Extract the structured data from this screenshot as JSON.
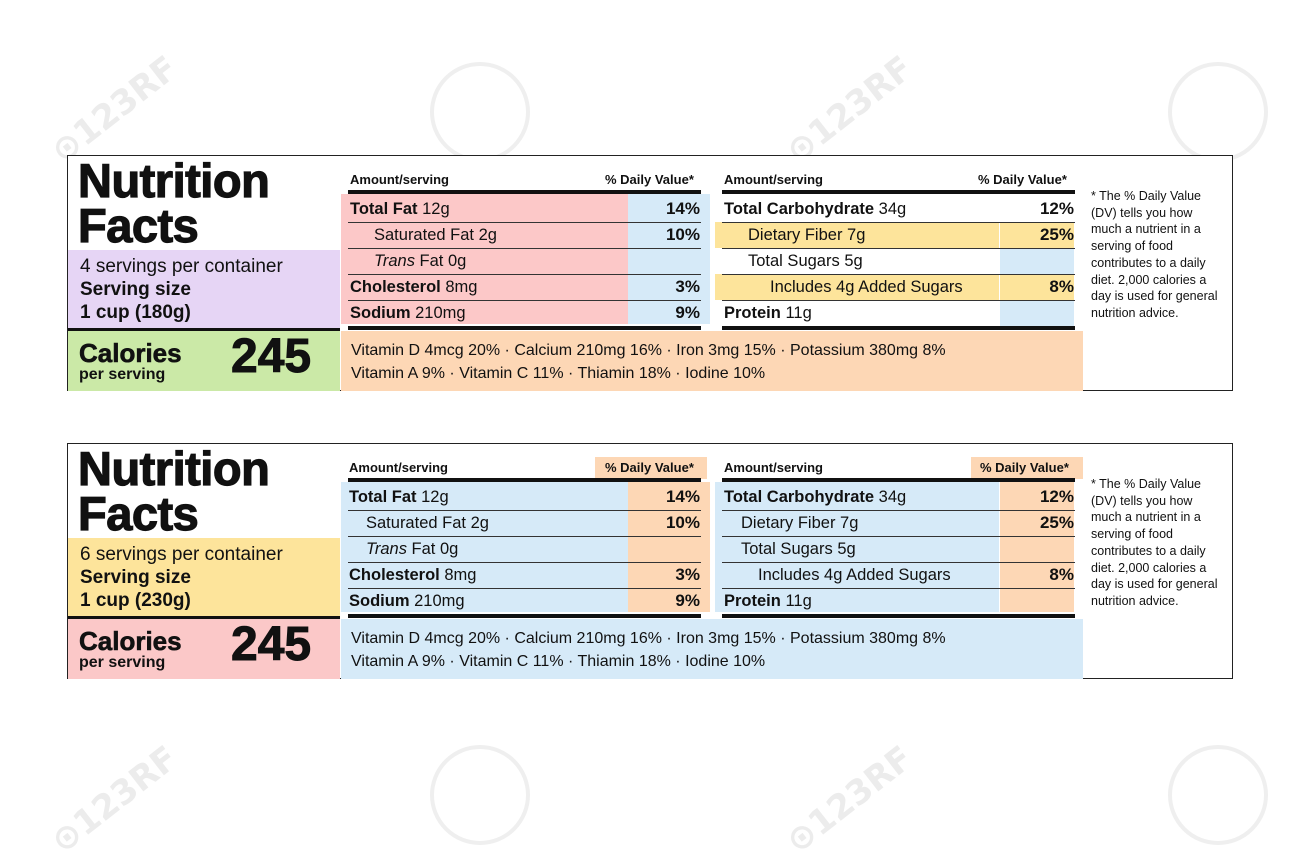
{
  "watermark": "123RF",
  "colors": {
    "pink": "#fcc8c8",
    "blue": "#d6eaf8",
    "lavender": "#e6d5f5",
    "green": "#cbe9a7",
    "orange": "#fdd7b5",
    "yellow": "#fde49b",
    "salmon": "#fbc8c8"
  },
  "labels": [
    {
      "title_line1": "Nutrition",
      "title_line2": "Facts",
      "servings": "4 servings per container",
      "serving_size_label": "Serving size",
      "serving_size_value": "1 cup (180g)",
      "calories_label": "Calories",
      "per_serving": "per serving",
      "calories_value": "245",
      "left_header": {
        "amount": "Amount/serving",
        "dv": "% Daily Value*"
      },
      "right_header": {
        "amount": "Amount/serving",
        "dv": "% Daily Value*"
      },
      "left_rows": [
        {
          "name": "Total Fat",
          "amount": "12g",
          "dv": "14%"
        },
        {
          "name": "Saturated Fat",
          "amount": "2g",
          "dv": "10%"
        },
        {
          "name": "Trans",
          "amount": "Fat 0g",
          "dv": ""
        },
        {
          "name": "Cholesterol",
          "amount": "8mg",
          "dv": "3%"
        },
        {
          "name": "Sodium",
          "amount": "210mg",
          "dv": "9%"
        }
      ],
      "right_rows": [
        {
          "name": "Total Carbohydrate",
          "amount": "34g",
          "dv": "12%"
        },
        {
          "name": "Dietary Fiber",
          "amount": "7g",
          "dv": "25%"
        },
        {
          "name": "Total Sugars",
          "amount": "5g",
          "dv": ""
        },
        {
          "name": "Includes 4g Added Sugars",
          "amount": "",
          "dv": "8%"
        },
        {
          "name": "Protein",
          "amount": "11g",
          "dv": ""
        }
      ],
      "vitamins_line1": "Vitamin D 4mcg 20% · Calcium 210mg 16% · Iron 3mg 15% · Potassium 380mg 8%",
      "vitamins_line2": "Vitamin A 9% · Vitamin C 11% · Thiamin 18% · Iodine 10%",
      "footnote": "* The % Daily Value (DV) tells you how much a nutrient in a serving of food contributes to a daily diet. 2,000 calories a day is used for general nutrition advice."
    },
    {
      "title_line1": "Nutrition",
      "title_line2": "Facts",
      "servings": "6 servings per container",
      "serving_size_label": "Serving size",
      "serving_size_value": "1 cup (230g)",
      "calories_label": "Calories",
      "per_serving": "per serving",
      "calories_value": "245",
      "left_header": {
        "amount": "Amount/serving",
        "dv": "% Daily Value*"
      },
      "right_header": {
        "amount": "Amount/serving",
        "dv": "% Daily Value*"
      },
      "left_rows": [
        {
          "name": "Total Fat",
          "amount": "12g",
          "dv": "14%"
        },
        {
          "name": "Saturated Fat",
          "amount": "2g",
          "dv": "10%"
        },
        {
          "name": "Trans",
          "amount": "Fat 0g",
          "dv": ""
        },
        {
          "name": "Cholesterol",
          "amount": "8mg",
          "dv": "3%"
        },
        {
          "name": "Sodium",
          "amount": "210mg",
          "dv": "9%"
        }
      ],
      "right_rows": [
        {
          "name": "Total Carbohydrate",
          "amount": "34g",
          "dv": "12%"
        },
        {
          "name": "Dietary Fiber",
          "amount": "7g",
          "dv": "25%"
        },
        {
          "name": "Total Sugars",
          "amount": "5g",
          "dv": ""
        },
        {
          "name": "Includes 4g Added Sugars",
          "amount": "",
          "dv": "8%"
        },
        {
          "name": "Protein",
          "amount": "11g",
          "dv": ""
        }
      ],
      "vitamins_line1": "Vitamin D 4mcg 20% · Calcium 210mg 16% · Iron 3mg 15% · Potassium 380mg 8%",
      "vitamins_line2": "Vitamin A 9% · Vitamin C 11% · Thiamin 18% · Iodine 10%",
      "footnote": "* The % Daily Value (DV) tells you how much a nutrient in a serving of food contributes to a daily diet. 2,000 calories a day is used for general nutrition advice."
    }
  ]
}
